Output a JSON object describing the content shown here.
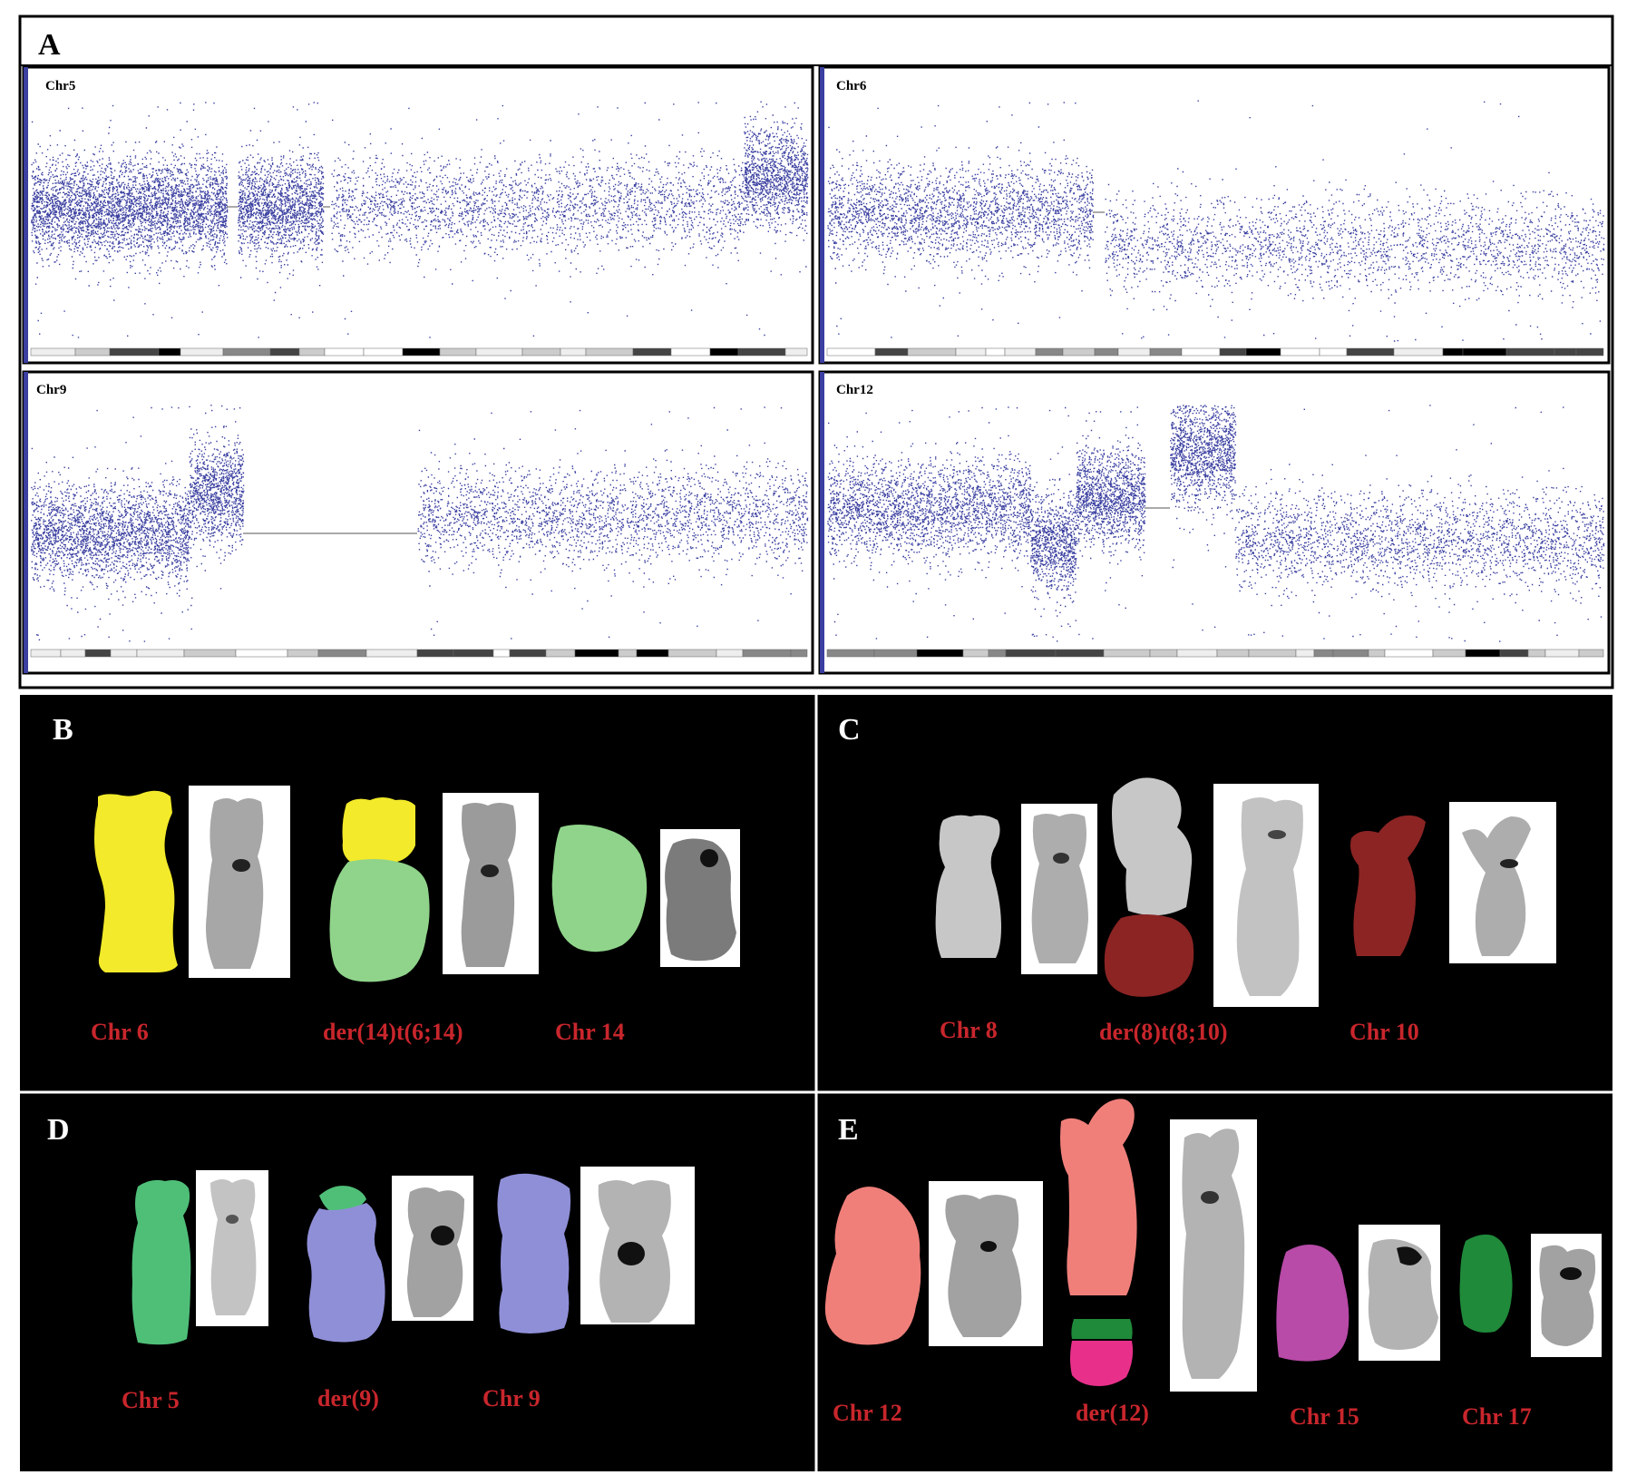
{
  "panel_A": {
    "letter": "A",
    "plots": [
      {
        "id": "chr5",
        "label": "Chr5"
      },
      {
        "id": "chr6",
        "label": "Chr6"
      },
      {
        "id": "chr9",
        "label": "Chr9"
      },
      {
        "id": "chr12",
        "label": "Chr12"
      }
    ]
  },
  "panel_B": {
    "letter": "B",
    "labels": [
      "Chr 6",
      "der(14)t(6;14)",
      "Chr 14"
    ]
  },
  "panel_C": {
    "letter": "C",
    "labels": [
      "Chr 8",
      "der(8)t(8;10)",
      "Chr 10"
    ]
  },
  "panel_D": {
    "letter": "D",
    "labels": [
      "Chr 5",
      "der(9)",
      "Chr 9"
    ]
  },
  "panel_E": {
    "letter": "E",
    "labels": [
      "Chr 12",
      "der(12)",
      "Chr 15",
      "Chr 17"
    ]
  },
  "colors": {
    "scatter_dots": "#3a3fa0",
    "label_red": "#c8262c",
    "chr6_yellow": "#f2ea2a",
    "chr14_green": "#8fd48a",
    "chr8_grey": "#c7c7c7",
    "chr10_darkred": "#8c2424",
    "chr5_green": "#4fbf78",
    "chr9_lavender": "#8f8fd8",
    "chr12_salmon": "#f07f7a",
    "chr15_magenta": "#b84aa8",
    "chr17_darkgreen": "#1f8a3a",
    "der12_pink": "#e8308a"
  }
}
